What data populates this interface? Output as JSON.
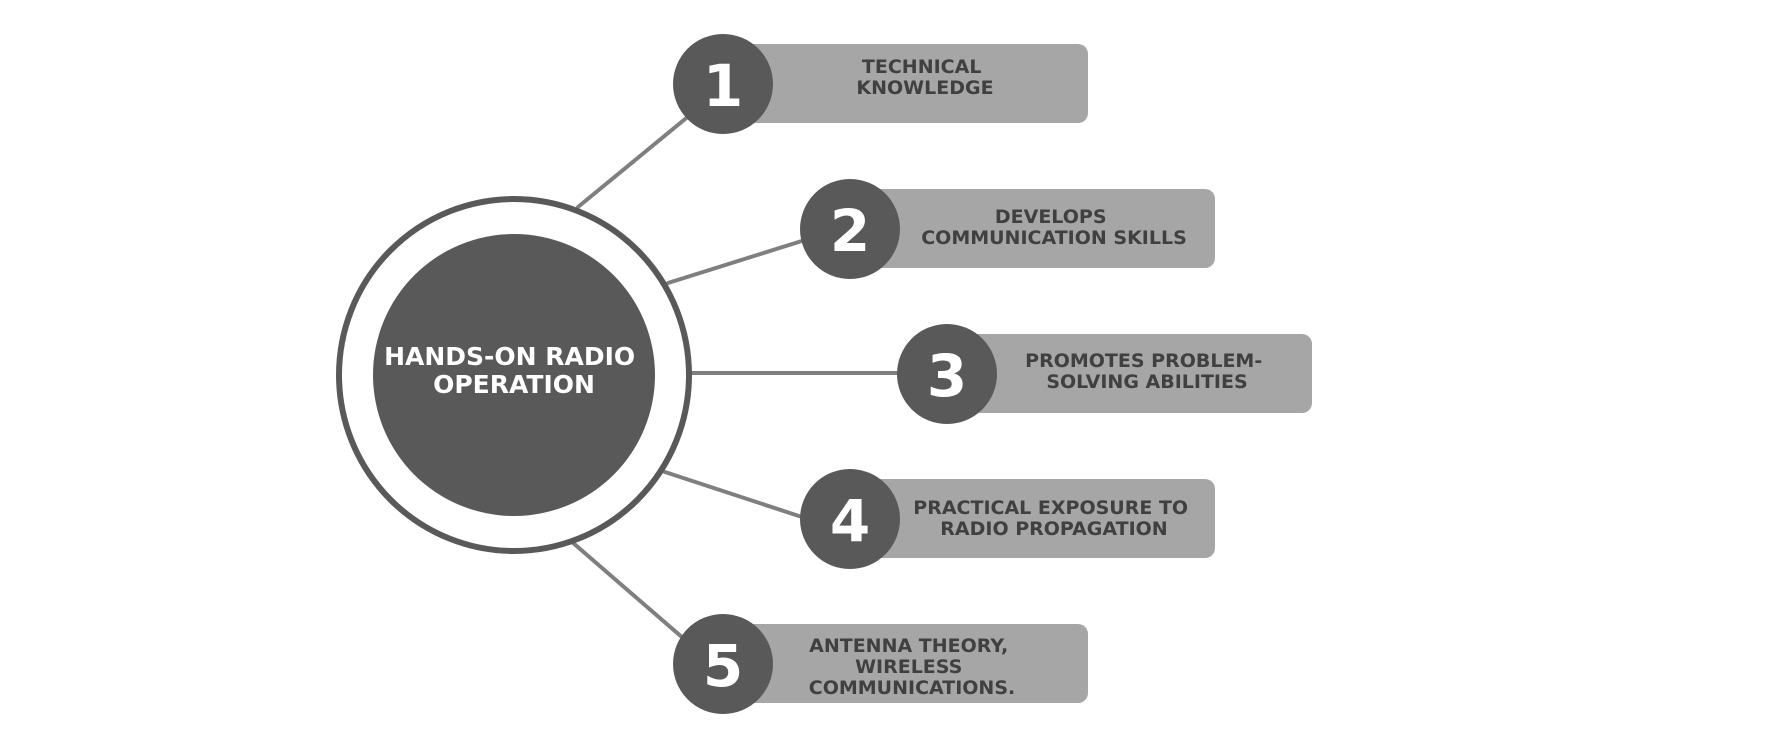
{
  "colors": {
    "background": "#ffffff",
    "hub_fill": "#595959",
    "hub_ring": "#595959",
    "connector": "#7f7f7f",
    "box_fill": "#a6a6a6",
    "badge_fill": "#595959",
    "number_text": "#ffffff",
    "item_text": "#404040",
    "hub_text": "#ffffff"
  },
  "hub": {
    "title_lines": [
      "HANDS-ON RADIO",
      "OPERATION"
    ]
  },
  "items": [
    {
      "number": "1",
      "lines": [
        "TECHNICAL",
        "KNOWLEDGE"
      ]
    },
    {
      "number": "2",
      "lines": [
        "DEVELOPS",
        "COMMUNICATION SKILLS"
      ]
    },
    {
      "number": "3",
      "lines": [
        "PROMOTES PROBLEM-",
        "SOLVING ABILITIES"
      ]
    },
    {
      "number": "4",
      "lines": [
        "PRACTICAL EXPOSURE TO",
        "RADIO PROPAGATION"
      ]
    },
    {
      "number": "5",
      "lines": [
        "ANTENNA THEORY,",
        "WIRELESS",
        "COMMUNICATIONS."
      ]
    }
  ]
}
